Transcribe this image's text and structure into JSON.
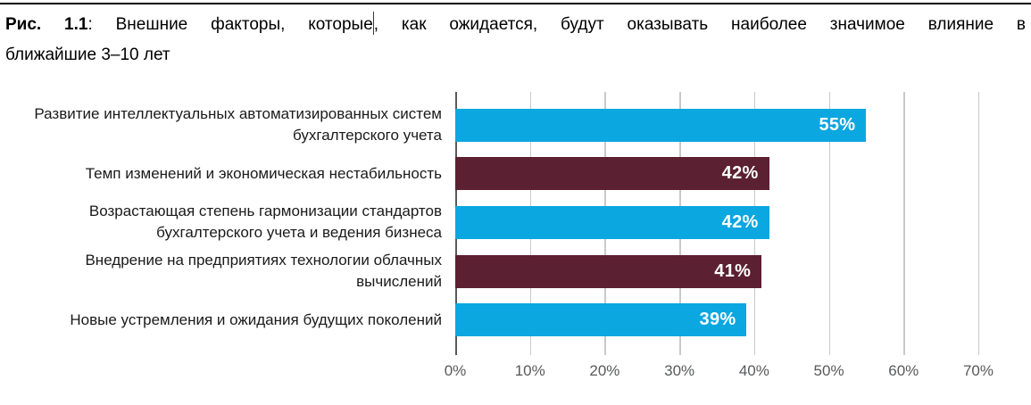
{
  "caption": {
    "prefix": "Рис. 1.1",
    "separator": ":",
    "before_caret": " Внешние факторы, которые",
    "after_caret": ", как ожидается, будут оказывать наиболее значимое влияние в",
    "line2": "ближайшие 3–10 лет"
  },
  "chart_data": {
    "type": "bar",
    "orientation": "horizontal",
    "title": "Рис. 1.1: Внешние факторы, которые, как ожидается, будут оказывать наиболее значимое влияние в ближайшие 3–10 лет",
    "categories": [
      "Развитие интеллектуальных автоматизированных систем бухгалтерского учета",
      "Темп изменений и экономическая нестабильность",
      "Возрастающая степень гармонизации стандартов бухгалтерского учета и ведения бизнеса",
      "Внедрение на предприятиях технологии облачных вычислений",
      "Новые устремления и ожидания будущих поколений"
    ],
    "values": [
      55,
      42,
      42,
      41,
      39
    ],
    "value_labels": [
      "55%",
      "42%",
      "42%",
      "41%",
      "39%"
    ],
    "bar_colors": [
      "#0ba7e0",
      "#5b2031",
      "#0ba7e0",
      "#5b2031",
      "#0ba7e0"
    ],
    "xlim": [
      0,
      70
    ],
    "x_ticks": [
      "0%",
      "10%",
      "20%",
      "30%",
      "40%",
      "50%",
      "60%",
      "70%"
    ],
    "grid": true,
    "legend": "none",
    "colors": {
      "bar_primary": "#0ba7e0",
      "bar_secondary": "#5b2031",
      "value_label_text": "#ffffff",
      "axis_text": "#58595b",
      "gridline": "#c9c9c9",
      "zero_line": "#595959",
      "category_text": "#1a1a1a",
      "caption_text": "#000000"
    }
  }
}
